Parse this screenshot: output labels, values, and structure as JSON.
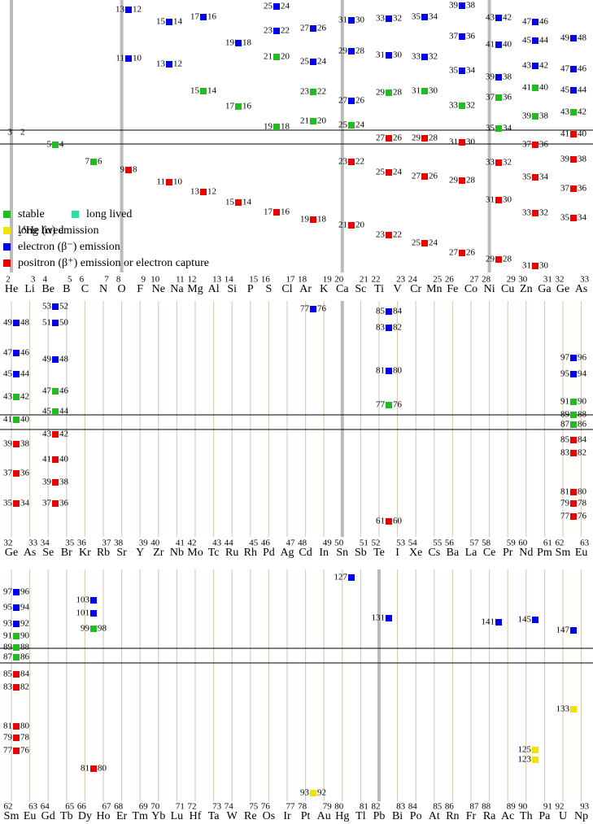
{
  "legend": [
    {
      "label": "stable",
      "color": "#22bb22"
    },
    {
      "label": "long lived",
      "color": "#33dd99"
    },
    {
      "label": "₂⁴He (α) emission",
      "color": "#f2e200"
    },
    {
      "label": "electron (β⁻) emission",
      "color": "#0000ee"
    },
    {
      "label": "positron (β⁺) emission or electron capture",
      "color": "#ee0000"
    }
  ],
  "panels": [
    {
      "numbers": [
        2,
        3,
        4,
        5,
        6,
        7,
        8,
        9,
        10,
        11,
        12,
        13,
        14,
        15,
        16,
        17,
        18,
        19,
        20,
        21,
        22,
        23,
        24,
        25,
        26,
        27,
        28,
        29,
        30,
        31,
        32,
        33
      ],
      "symbols": [
        "He",
        "Li",
        "Be",
        "B",
        "C",
        "N",
        "O",
        "F",
        "Ne",
        "Na",
        "Mg",
        "Al",
        "Si",
        "P",
        "S",
        "Cl",
        "Ar",
        "K",
        "Ca",
        "Sc",
        "Ti",
        "V",
        "Cr",
        "Mn",
        "Fe",
        "Co",
        "Ni",
        "Cu",
        "Zn",
        "Ga",
        "Ge",
        "As"
      ],
      "nodes": [
        [
          "13",
          "12",
          "#0000ee"
        ],
        [
          "15",
          "14",
          "#0000ee"
        ],
        [
          "17",
          "16",
          "#0000ee"
        ],
        [
          "19",
          "18",
          "#0000ee"
        ],
        [
          "25",
          "24",
          "#0000ee"
        ],
        [
          "23",
          "22",
          "#0000ee"
        ],
        [
          "27",
          "26",
          "#0000ee"
        ],
        [
          "21",
          "20",
          "#22bb22"
        ],
        [
          "25",
          "24",
          "#0000ee"
        ],
        [
          "23",
          "22",
          "#22bb22"
        ],
        [
          "21",
          "20",
          "#22bb22"
        ],
        [
          "19",
          "18",
          "#22bb22"
        ],
        [
          "31",
          "30",
          "#0000ee"
        ],
        [
          "29",
          "28",
          "#0000ee"
        ],
        [
          "27",
          "26",
          "#0000ee"
        ],
        [
          "25",
          "24",
          "#22bb22"
        ],
        [
          "23",
          "22",
          "#ee0000"
        ],
        [
          "33",
          "32",
          "#0000ee"
        ],
        [
          "31",
          "30",
          "#0000ee"
        ],
        [
          "29",
          "28",
          "#22bb22"
        ],
        [
          "27",
          "26",
          "#ee0000"
        ],
        [
          "25",
          "24",
          "#ee0000"
        ],
        [
          "35",
          "34",
          "#0000ee"
        ],
        [
          "33",
          "32",
          "#0000ee"
        ],
        [
          "31",
          "30",
          "#22bb22"
        ],
        [
          "29",
          "28",
          "#ee0000"
        ],
        [
          "27",
          "26",
          "#ee0000"
        ],
        [
          "39",
          "38",
          "#0000ee"
        ],
        [
          "37",
          "36",
          "#0000ee"
        ],
        [
          "35",
          "34",
          "#0000ee"
        ],
        [
          "33",
          "32",
          "#22bb22"
        ],
        [
          "31",
          "30",
          "#ee0000"
        ],
        [
          "29",
          "28",
          "#ee0000"
        ],
        [
          "43",
          "42",
          "#0000ee"
        ],
        [
          "41",
          "40",
          "#0000ee"
        ],
        [
          "39",
          "38",
          "#0000ee"
        ],
        [
          "37",
          "36",
          "#22bb22"
        ],
        [
          "35",
          "34",
          "#22bb22"
        ],
        [
          "33",
          "32",
          "#ee0000"
        ],
        [
          "31",
          "30",
          "#ee0000"
        ],
        [
          "29",
          "28",
          "#ee0000"
        ],
        [
          "47",
          "46",
          "#0000ee"
        ],
        [
          "45",
          "44",
          "#0000ee"
        ],
        [
          "43",
          "42",
          "#0000ee"
        ],
        [
          "41",
          "40",
          "#22bb22"
        ],
        [
          "39",
          "38",
          "#22bb22"
        ],
        [
          "37",
          "36",
          "#ee0000"
        ],
        [
          "35",
          "34",
          "#ee0000"
        ],
        [
          "33",
          "32",
          "#ee0000"
        ],
        [
          "31",
          "30",
          "#ee0000"
        ],
        [
          "49",
          "48",
          "#0000ee"
        ],
        [
          "47",
          "46",
          "#0000ee"
        ],
        [
          "45",
          "44",
          "#0000ee"
        ],
        [
          "43",
          "42",
          "#22bb22"
        ],
        [
          "41",
          "40",
          "#ee0000"
        ],
        [
          "39",
          "38",
          "#ee0000"
        ],
        [
          "37",
          "36",
          "#ee0000"
        ],
        [
          "35",
          "34",
          "#ee0000"
        ],
        [
          "11",
          "10",
          "#0000ee"
        ],
        [
          "13",
          "12",
          "#0000ee"
        ],
        [
          "15",
          "14",
          "#22bb22"
        ],
        [
          "17",
          "16",
          "#22bb22"
        ],
        [
          "3",
          "2"
        ],
        [
          "5",
          "4",
          "#22bb22"
        ],
        [
          "7",
          "6",
          "#22bb22"
        ],
        [
          "9",
          "8",
          "#ee0000"
        ],
        [
          "11",
          "10",
          "#ee0000"
        ],
        [
          "13",
          "12",
          "#ee0000"
        ],
        [
          "15",
          "14",
          "#ee0000"
        ],
        [
          "17",
          "16",
          "#ee0000"
        ],
        [
          "19",
          "18",
          "#ee0000"
        ],
        [
          "21",
          "20",
          "#ee0000"
        ],
        [
          "23",
          "22",
          "#ee0000"
        ],
        [
          "25",
          "24",
          "#ee0000"
        ],
        [
          "27",
          "26",
          "#ee0000"
        ]
      ]
    },
    {
      "numbers": [
        32,
        33,
        34,
        35,
        36,
        37,
        38,
        39,
        40,
        41,
        42,
        43,
        44,
        45,
        46,
        47,
        48,
        49,
        50,
        51,
        52,
        53,
        54,
        55,
        56,
        57,
        58,
        59,
        60,
        61,
        62,
        63
      ],
      "symbols": [
        "Ge",
        "As",
        "Se",
        "Br",
        "Kr",
        "Rb",
        "Sr",
        "Y",
        "Zr",
        "Nb",
        "Mo",
        "Tc",
        "Ru",
        "Rh",
        "Pd",
        "Ag",
        "Cd",
        "In",
        "Sn",
        "Sb",
        "Te",
        "I",
        "Xe",
        "Cs",
        "Ba",
        "La",
        "Ce",
        "Pr",
        "Nd",
        "Pm",
        "Sm",
        "Eu"
      ],
      "nodes": [
        [
          "49",
          "48",
          "#0000ee"
        ],
        [
          "47",
          "46",
          "#0000ee"
        ],
        [
          "45",
          "44",
          "#0000ee"
        ],
        [
          "43",
          "42",
          "#22bb22"
        ],
        [
          "41",
          "40",
          "#22bb22"
        ],
        [
          "39",
          "38",
          "#ee0000"
        ],
        [
          "37",
          "36",
          "#ee0000"
        ],
        [
          "35",
          "34",
          "#ee0000"
        ],
        [
          "53",
          "52",
          "#0000ee"
        ],
        [
          "51",
          "50",
          "#0000ee"
        ],
        [
          "49",
          "48",
          "#0000ee"
        ],
        [
          "47",
          "46",
          "#22bb22"
        ],
        [
          "45",
          "44",
          "#22bb22"
        ],
        [
          "43",
          "42",
          "#ee0000"
        ],
        [
          "41",
          "40",
          "#ee0000"
        ],
        [
          "39",
          "38",
          "#ee0000"
        ],
        [
          "37",
          "36",
          "#ee0000"
        ],
        [
          "77",
          "76",
          "#0000ee"
        ],
        [
          "85",
          "84",
          "#0000ee"
        ],
        [
          "83",
          "82",
          "#0000ee"
        ],
        [
          "81",
          "80",
          "#0000ee"
        ],
        [
          "77",
          "76",
          "#22bb22"
        ],
        [
          "61",
          "60",
          "#ee0000"
        ],
        [
          "97",
          "96",
          "#0000ee"
        ],
        [
          "95",
          "94",
          "#0000ee"
        ],
        [
          "91",
          "90",
          "#22bb22"
        ],
        [
          "89",
          "88",
          "#22bb22"
        ],
        [
          "87",
          "86",
          "#22bb22"
        ],
        [
          "85",
          "84",
          "#ee0000"
        ],
        [
          "83",
          "82",
          "#ee0000"
        ],
        [
          "81",
          "80",
          "#ee0000"
        ],
        [
          "79",
          "78",
          "#ee0000"
        ],
        [
          "77",
          "76",
          "#ee0000"
        ]
      ]
    },
    {
      "numbers": [
        62,
        63,
        64,
        65,
        66,
        67,
        68,
        69,
        70,
        71,
        72,
        73,
        74,
        75,
        76,
        77,
        78,
        79,
        80,
        81,
        82,
        83,
        84,
        85,
        86,
        87,
        88,
        89,
        90,
        91,
        92,
        93
      ],
      "symbols": [
        "Sm",
        "Eu",
        "Gd",
        "Tb",
        "Dy",
        "Ho",
        "Er",
        "Tm",
        "Yb",
        "Lu",
        "Hf",
        "Ta",
        "W",
        "Re",
        "Os",
        "Ir",
        "Pt",
        "Au",
        "Hg",
        "Tl",
        "Pb",
        "Bi",
        "Po",
        "At",
        "Rn",
        "Fr",
        "Ra",
        "Ac",
        "Th",
        "Pa",
        "U",
        "Np"
      ],
      "nodes": [
        [
          "97",
          "96",
          "#0000ee"
        ],
        [
          "95",
          "94",
          "#0000ee"
        ],
        [
          "93",
          "92",
          "#0000ee"
        ],
        [
          "91",
          "90",
          "#22bb22"
        ],
        [
          "89",
          "88",
          "#22bb22"
        ],
        [
          "87",
          "86",
          "#22bb22"
        ],
        [
          "85",
          "84",
          "#ee0000"
        ],
        [
          "83",
          "82",
          "#ee0000"
        ],
        [
          "81",
          "80",
          "#ee0000"
        ],
        [
          "79",
          "78",
          "#ee0000"
        ],
        [
          "77",
          "76",
          "#ee0000"
        ],
        [
          "103",
          "#0000ee"
        ],
        [
          "101",
          "#0000ee"
        ],
        [
          "99",
          "98",
          "#22bb22"
        ],
        [
          "81",
          "80",
          "#ee0000"
        ],
        [
          "127",
          "#0000ee"
        ],
        [
          "131",
          "#0000ee"
        ],
        [
          "141",
          "#0000ee"
        ],
        [
          "145",
          "#0000ee"
        ],
        [
          "147",
          "#0000ee"
        ],
        [
          "133",
          "#f2e200"
        ],
        [
          "125",
          "#f2e200"
        ],
        [
          "123",
          "#f2e200"
        ],
        [
          "93",
          "92",
          "#f2e200"
        ]
      ]
    }
  ]
}
